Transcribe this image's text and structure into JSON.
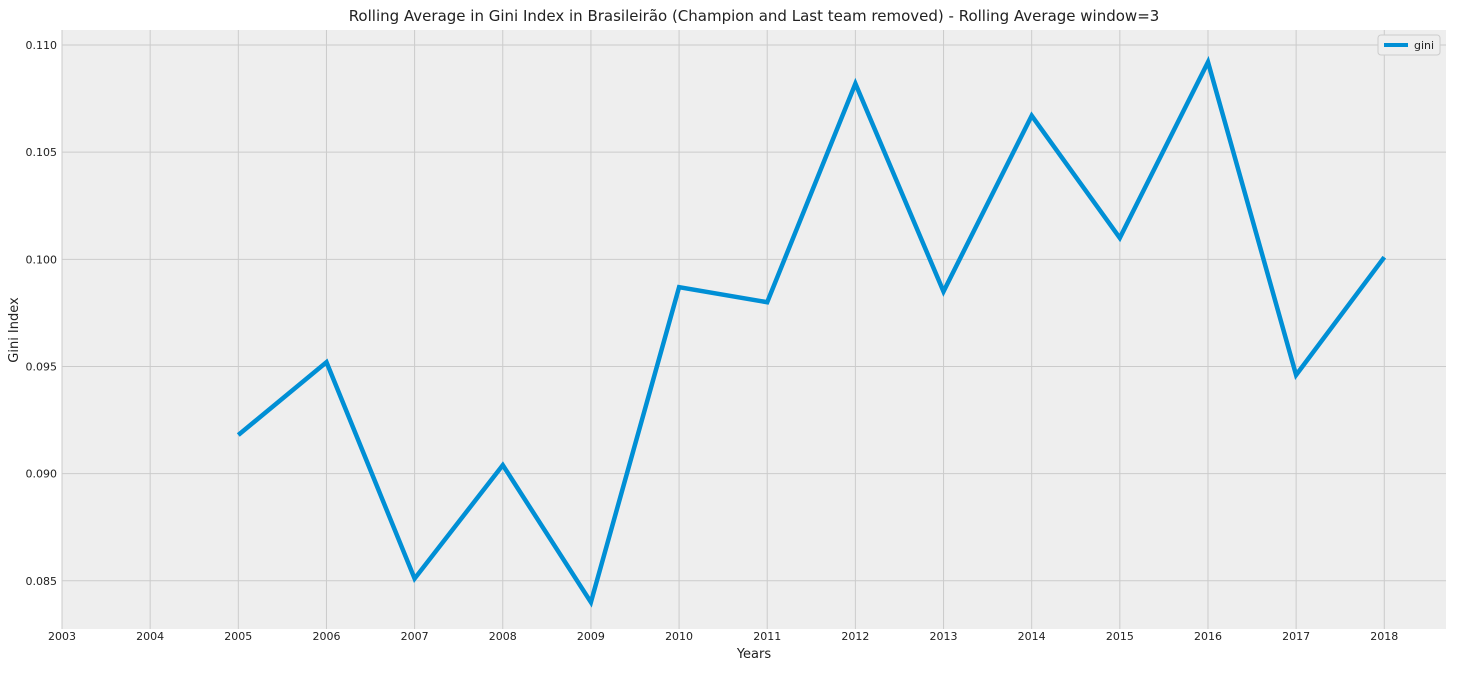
{
  "chart_data": {
    "type": "line",
    "title": "Rolling Average in Gini Index in Brasileirão (Champion and Last team removed) - Rolling Average window=3",
    "xlabel": "Years",
    "ylabel": "Gini Index",
    "xlim": [
      2003,
      2018.7
    ],
    "ylim": [
      0.08275,
      0.1107
    ],
    "xticks": [
      "2003",
      "2004",
      "2005",
      "2006",
      "2007",
      "2008",
      "2009",
      "2010",
      "2011",
      "2012",
      "2013",
      "2014",
      "2015",
      "2016",
      "2017",
      "2018"
    ],
    "yticks": [
      "0.085",
      "0.090",
      "0.095",
      "0.100",
      "0.105",
      "0.110"
    ],
    "grid": true,
    "legend": "top-right",
    "series": [
      {
        "name": "gini",
        "color": "#008fd5",
        "x": [
          2005,
          2006,
          2007,
          2008,
          2009,
          2010,
          2011,
          2012,
          2013,
          2014,
          2015,
          2016,
          2017,
          2018
        ],
        "y": [
          0.0918,
          0.0952,
          0.0851,
          0.0904,
          0.084,
          0.0987,
          0.098,
          0.1082,
          0.0985,
          0.1067,
          0.101,
          0.1092,
          0.0946,
          0.1001
        ]
      }
    ]
  }
}
